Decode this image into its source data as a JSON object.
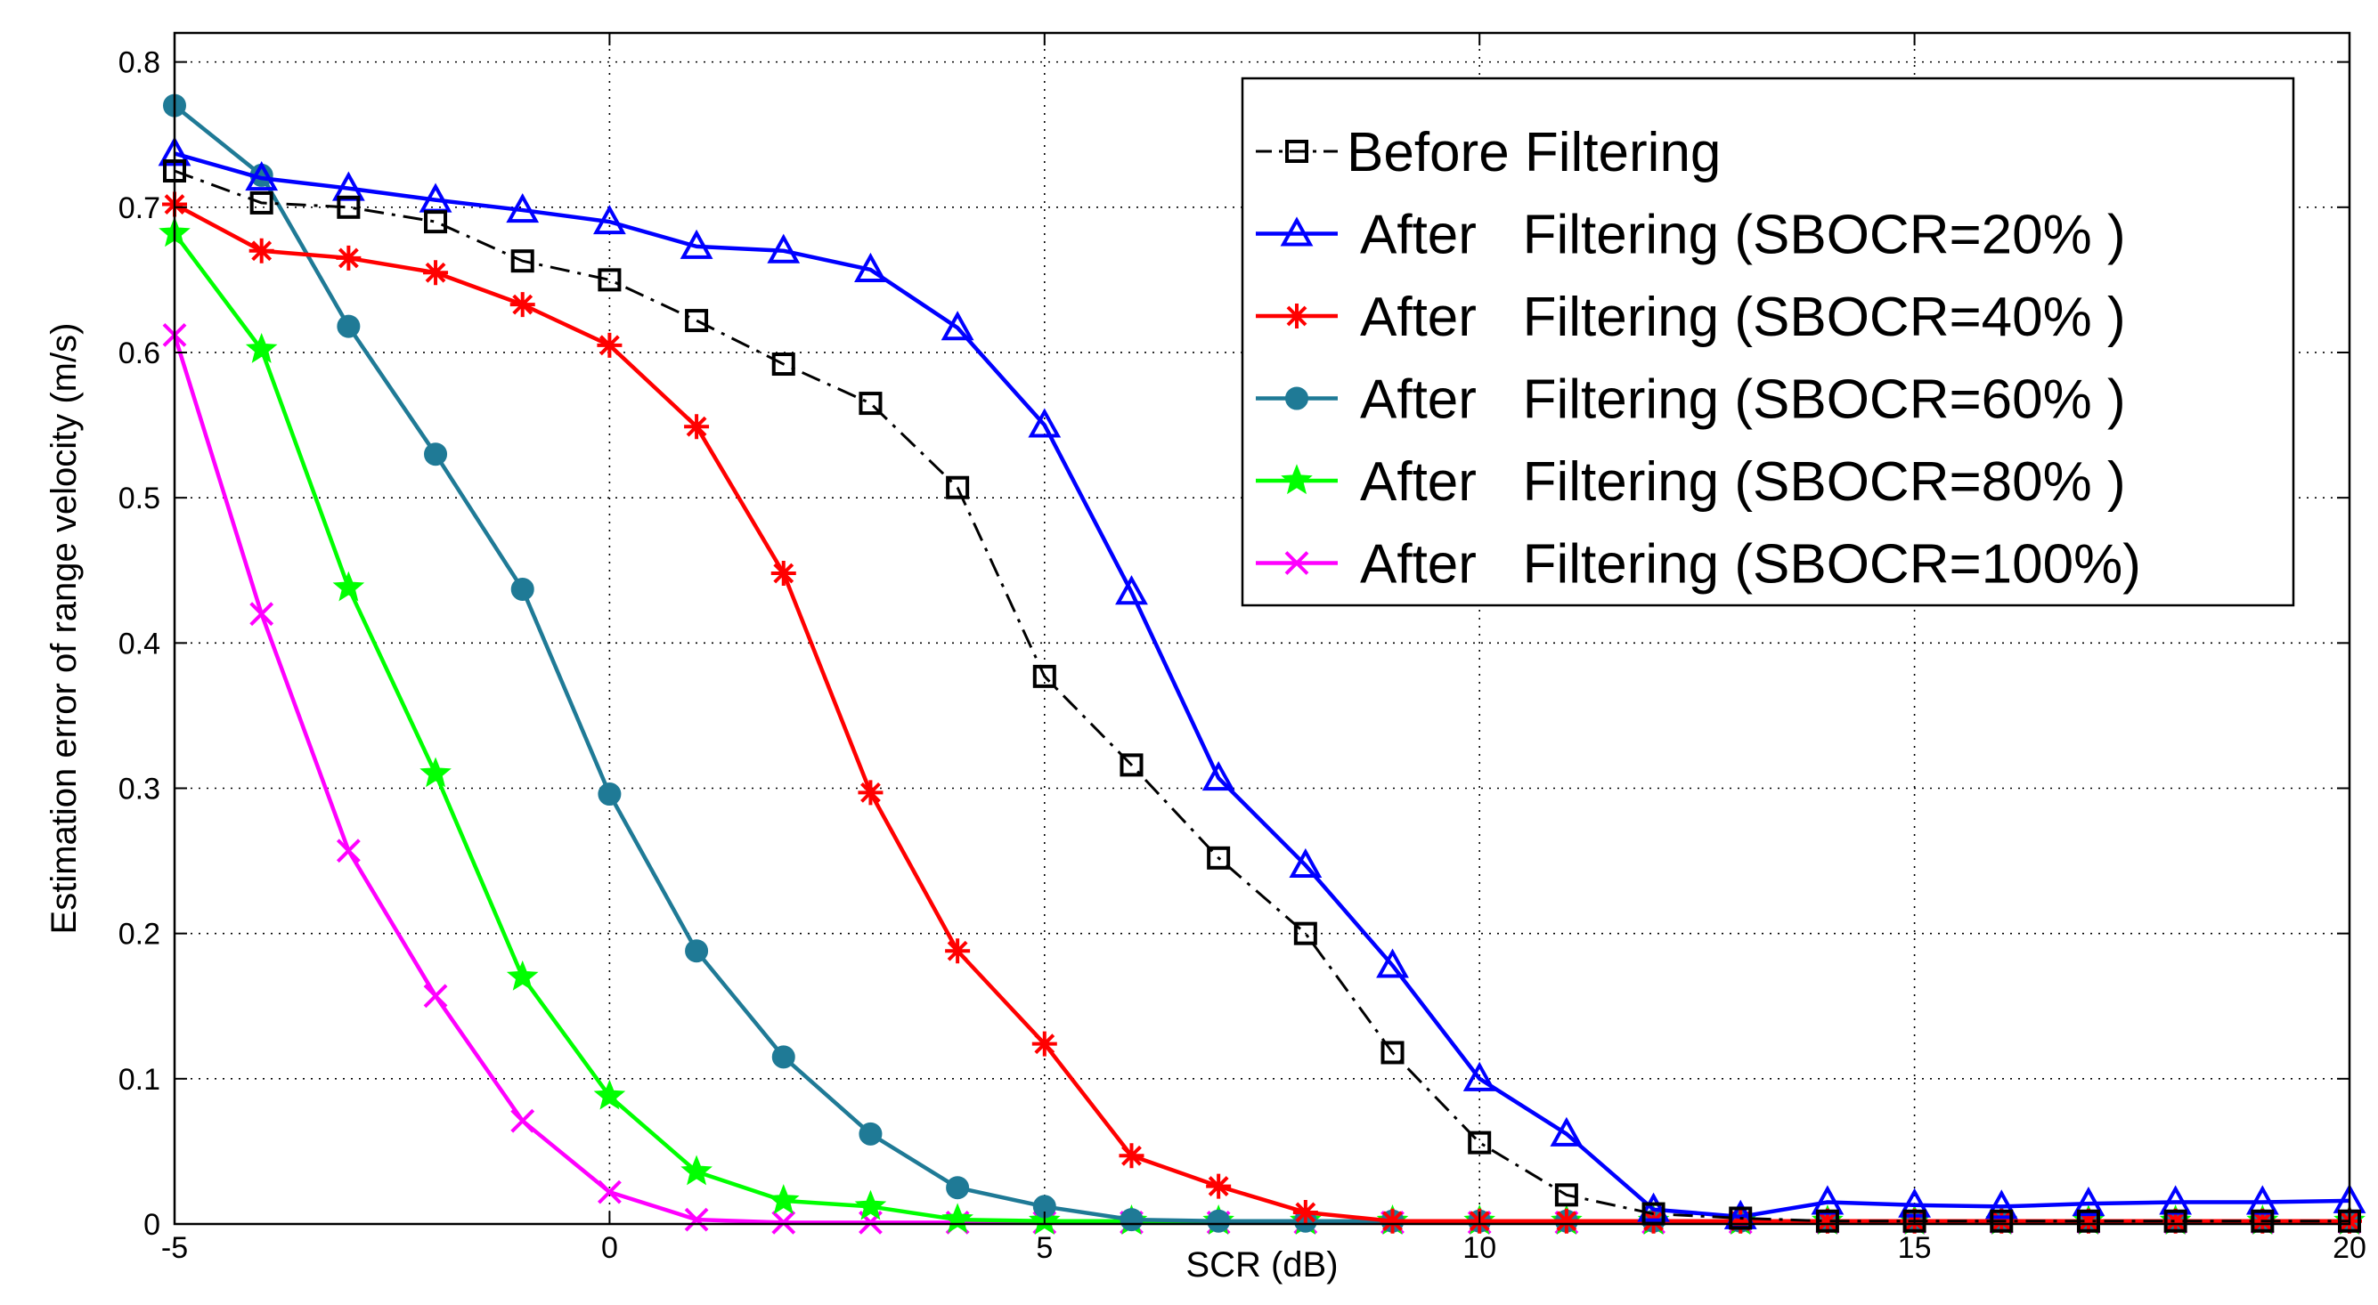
{
  "chart_data": {
    "type": "line",
    "title": "",
    "xlabel": "SCR (dB)",
    "ylabel": "Estimation error of range velocity (m/s)",
    "xlim": [
      -5,
      20
    ],
    "ylim": [
      0,
      0.82
    ],
    "grid": true,
    "legend_position": "top-right",
    "x": [
      -5,
      -4,
      -3,
      -2,
      -1,
      0,
      1,
      2,
      3,
      4,
      5,
      6,
      7,
      8,
      9,
      10,
      11,
      12,
      13,
      14,
      15,
      16,
      17,
      18,
      19,
      20
    ],
    "xticks": [
      -5,
      0,
      5,
      10,
      15,
      20
    ],
    "yticks": [
      0,
      0.1,
      0.2,
      0.3,
      0.4,
      0.5,
      0.6,
      0.7,
      0.8
    ],
    "xtick_labels": [
      "-5",
      "0",
      "5",
      "10",
      "15",
      "20"
    ],
    "ytick_labels": [
      "0",
      "0.1",
      "0.2",
      "0.3",
      "0.4",
      "0.5",
      "0.6",
      "0.7",
      "0.8"
    ],
    "series": [
      {
        "name": "Before Filtering",
        "color": "#000000",
        "marker": "square",
        "line_style": "dashdot",
        "values": [
          0.725,
          0.703,
          0.7,
          0.69,
          0.663,
          0.65,
          0.622,
          0.592,
          0.565,
          0.507,
          0.377,
          0.316,
          0.252,
          0.2,
          0.118,
          0.056,
          0.02,
          0.007,
          0.004,
          0.002,
          0.002,
          0.002,
          0.002,
          0.002,
          0.002,
          0.002
        ]
      },
      {
        "name": "After   Filtering (SBOCR=20% )",
        "color": "#0000FF",
        "marker": "triangle",
        "line_style": "solid",
        "values": [
          0.737,
          0.72,
          0.713,
          0.705,
          0.698,
          0.69,
          0.673,
          0.67,
          0.657,
          0.617,
          0.55,
          0.435,
          0.307,
          0.247,
          0.178,
          0.1,
          0.062,
          0.01,
          0.005,
          0.015,
          0.013,
          0.012,
          0.014,
          0.015,
          0.015,
          0.016
        ]
      },
      {
        "name": "After   Filtering (SBOCR=40% )",
        "color": "#FF0000",
        "marker": "asterisk",
        "line_style": "solid",
        "values": [
          0.702,
          0.67,
          0.665,
          0.655,
          0.633,
          0.605,
          0.549,
          0.448,
          0.297,
          0.188,
          0.124,
          0.047,
          0.026,
          0.008,
          0.002,
          0.002,
          0.002,
          0.002,
          0.002,
          0.002,
          0.002,
          0.002,
          0.002,
          0.002,
          0.002,
          0.002
        ]
      },
      {
        "name": "After   Filtering (SBOCR=60% )",
        "color": "#1F7A96",
        "marker": "circle",
        "line_style": "solid",
        "values": [
          0.77,
          0.722,
          0.618,
          0.53,
          0.437,
          0.296,
          0.188,
          0.115,
          0.062,
          0.025,
          0.012,
          0.003,
          0.002,
          0.002,
          0.002,
          0.002,
          0.002,
          0.002,
          0.002,
          0.002,
          0.002,
          0.002,
          0.002,
          0.002,
          0.002,
          0.002
        ]
      },
      {
        "name": "After   Filtering (SBOCR=80% )",
        "color": "#00FF00",
        "marker": "star",
        "line_style": "solid",
        "values": [
          0.682,
          0.602,
          0.438,
          0.31,
          0.17,
          0.088,
          0.036,
          0.016,
          0.012,
          0.003,
          0.002,
          0.002,
          0.002,
          0.002,
          0.002,
          0.002,
          0.002,
          0.002,
          0.002,
          0.002,
          0.002,
          0.002,
          0.002,
          0.002,
          0.002,
          0.002
        ]
      },
      {
        "name": "After   Filtering (SBOCR=100%)",
        "color": "#FF00FF",
        "marker": "x",
        "line_style": "solid",
        "values": [
          0.612,
          0.42,
          0.257,
          0.157,
          0.071,
          0.022,
          0.003,
          0.001,
          0.001,
          0.001,
          0.001,
          0.001,
          0.001,
          0.001,
          0.001,
          0.001,
          0.001,
          0.001,
          0.001,
          0.001,
          0.001,
          0.001,
          0.001,
          0.001,
          0.001,
          0.001
        ]
      }
    ]
  }
}
